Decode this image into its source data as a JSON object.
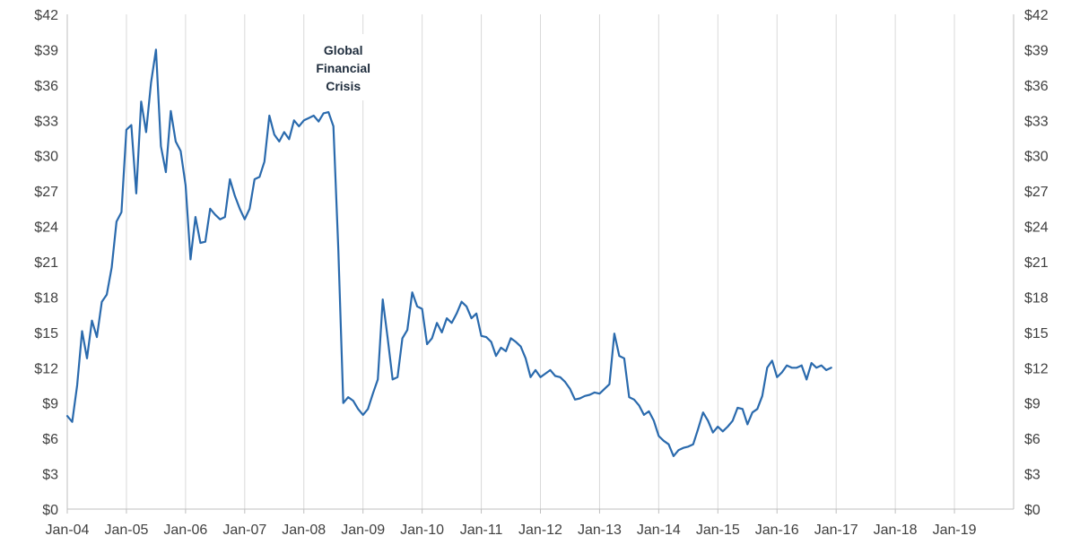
{
  "chart_data": {
    "type": "line",
    "title": "",
    "xlabel": "",
    "ylabel": "",
    "x_ticks": [
      "Jan-04",
      "Jan-05",
      "Jan-06",
      "Jan-07",
      "Jan-08",
      "Jan-09",
      "Jan-10",
      "Jan-11",
      "Jan-12",
      "Jan-13",
      "Jan-14",
      "Jan-15",
      "Jan-16",
      "Jan-17",
      "Jan-18",
      "Jan-19"
    ],
    "y_ticks": [
      "$0",
      "$3",
      "$6",
      "$9",
      "$12",
      "$15",
      "$18",
      "$21",
      "$24",
      "$27",
      "$30",
      "$33",
      "$36",
      "$39",
      "$42"
    ],
    "ylim": [
      0,
      42
    ],
    "xlim": [
      "2004-01",
      "2019-12"
    ],
    "grid": "vertical",
    "series_color": "#2a6aad",
    "annotation": {
      "text_lines": [
        "Global",
        "Financial",
        "Crisis"
      ],
      "at": "2008-09"
    },
    "series": [
      {
        "points": [
          [
            "2004-01",
            7.9
          ],
          [
            "2004-02",
            7.4
          ],
          [
            "2004-03",
            10.5
          ],
          [
            "2004-04",
            15.1
          ],
          [
            "2004-05",
            12.8
          ],
          [
            "2004-06",
            16.0
          ],
          [
            "2004-07",
            14.6
          ],
          [
            "2004-08",
            17.6
          ],
          [
            "2004-09",
            18.2
          ],
          [
            "2004-10",
            20.5
          ],
          [
            "2004-11",
            24.4
          ],
          [
            "2004-12",
            25.2
          ],
          [
            "2005-01",
            32.2
          ],
          [
            "2005-02",
            32.6
          ],
          [
            "2005-03",
            26.8
          ],
          [
            "2005-04",
            34.6
          ],
          [
            "2005-05",
            32.0
          ],
          [
            "2005-06",
            36.2
          ],
          [
            "2005-07",
            39.0
          ],
          [
            "2005-08",
            30.8
          ],
          [
            "2005-09",
            28.6
          ],
          [
            "2005-10",
            33.8
          ],
          [
            "2005-11",
            31.2
          ],
          [
            "2005-12",
            30.4
          ],
          [
            "2006-01",
            27.5
          ],
          [
            "2006-02",
            21.2
          ],
          [
            "2006-03",
            24.8
          ],
          [
            "2006-04",
            22.6
          ],
          [
            "2006-05",
            22.7
          ],
          [
            "2006-06",
            25.5
          ],
          [
            "2006-07",
            25.0
          ],
          [
            "2006-08",
            24.6
          ],
          [
            "2006-09",
            24.8
          ],
          [
            "2006-10",
            28.0
          ],
          [
            "2006-11",
            26.6
          ],
          [
            "2006-12",
            25.5
          ],
          [
            "2007-01",
            24.6
          ],
          [
            "2007-02",
            25.5
          ],
          [
            "2007-03",
            28.0
          ],
          [
            "2007-04",
            28.2
          ],
          [
            "2007-05",
            29.5
          ],
          [
            "2007-06",
            33.4
          ],
          [
            "2007-07",
            31.8
          ],
          [
            "2007-08",
            31.2
          ],
          [
            "2007-09",
            32.0
          ],
          [
            "2007-10",
            31.4
          ],
          [
            "2007-11",
            33.0
          ],
          [
            "2007-12",
            32.5
          ],
          [
            "2008-01",
            33.0
          ],
          [
            "2008-02",
            33.2
          ],
          [
            "2008-03",
            33.4
          ],
          [
            "2008-04",
            32.9
          ],
          [
            "2008-05",
            33.6
          ],
          [
            "2008-06",
            33.7
          ],
          [
            "2008-07",
            32.5
          ],
          [
            "2008-08",
            22.0
          ],
          [
            "2008-09",
            9.0
          ],
          [
            "2008-10",
            9.5
          ],
          [
            "2008-11",
            9.2
          ],
          [
            "2008-12",
            8.5
          ],
          [
            "2009-01",
            8.0
          ],
          [
            "2009-02",
            8.5
          ],
          [
            "2009-03",
            9.8
          ],
          [
            "2009-04",
            11.0
          ],
          [
            "2009-05",
            17.8
          ],
          [
            "2009-06",
            14.5
          ],
          [
            "2009-07",
            11.0
          ],
          [
            "2009-08",
            11.2
          ],
          [
            "2009-09",
            14.5
          ],
          [
            "2009-10",
            15.2
          ],
          [
            "2009-11",
            18.4
          ],
          [
            "2009-12",
            17.2
          ],
          [
            "2010-01",
            17.0
          ],
          [
            "2010-02",
            14.0
          ],
          [
            "2010-03",
            14.5
          ],
          [
            "2010-04",
            15.8
          ],
          [
            "2010-05",
            15.0
          ],
          [
            "2010-06",
            16.2
          ],
          [
            "2010-07",
            15.8
          ],
          [
            "2010-08",
            16.6
          ],
          [
            "2010-09",
            17.6
          ],
          [
            "2010-10",
            17.2
          ],
          [
            "2010-11",
            16.2
          ],
          [
            "2010-12",
            16.6
          ],
          [
            "2011-01",
            14.7
          ],
          [
            "2011-02",
            14.6
          ],
          [
            "2011-03",
            14.2
          ],
          [
            "2011-04",
            13.0
          ],
          [
            "2011-05",
            13.7
          ],
          [
            "2011-06",
            13.4
          ],
          [
            "2011-07",
            14.5
          ],
          [
            "2011-08",
            14.2
          ],
          [
            "2011-09",
            13.8
          ],
          [
            "2011-10",
            12.8
          ],
          [
            "2011-11",
            11.2
          ],
          [
            "2011-12",
            11.8
          ],
          [
            "2012-01",
            11.2
          ],
          [
            "2012-02",
            11.5
          ],
          [
            "2012-03",
            11.8
          ],
          [
            "2012-04",
            11.3
          ],
          [
            "2012-05",
            11.2
          ],
          [
            "2012-06",
            10.8
          ],
          [
            "2012-07",
            10.2
          ],
          [
            "2012-08",
            9.3
          ],
          [
            "2012-09",
            9.4
          ],
          [
            "2012-10",
            9.6
          ],
          [
            "2012-11",
            9.7
          ],
          [
            "2012-12",
            9.9
          ],
          [
            "2013-01",
            9.8
          ],
          [
            "2013-02",
            10.2
          ],
          [
            "2013-03",
            10.6
          ],
          [
            "2013-04",
            14.9
          ],
          [
            "2013-05",
            13.0
          ],
          [
            "2013-06",
            12.8
          ],
          [
            "2013-07",
            9.5
          ],
          [
            "2013-08",
            9.3
          ],
          [
            "2013-09",
            8.8
          ],
          [
            "2013-10",
            8.0
          ],
          [
            "2013-11",
            8.3
          ],
          [
            "2013-12",
            7.5
          ],
          [
            "2014-01",
            6.2
          ],
          [
            "2014-02",
            5.8
          ],
          [
            "2014-03",
            5.5
          ],
          [
            "2014-04",
            4.5
          ],
          [
            "2014-05",
            5.0
          ],
          [
            "2014-06",
            5.2
          ],
          [
            "2014-07",
            5.3
          ],
          [
            "2014-08",
            5.5
          ],
          [
            "2014-09",
            6.8
          ],
          [
            "2014-10",
            8.2
          ],
          [
            "2014-11",
            7.5
          ],
          [
            "2014-12",
            6.5
          ],
          [
            "2015-01",
            7.0
          ],
          [
            "2015-02",
            6.6
          ],
          [
            "2015-03",
            7.0
          ],
          [
            "2015-04",
            7.5
          ],
          [
            "2015-05",
            8.6
          ],
          [
            "2015-06",
            8.5
          ],
          [
            "2015-07",
            7.2
          ],
          [
            "2015-08",
            8.2
          ],
          [
            "2015-09",
            8.5
          ],
          [
            "2015-10",
            9.6
          ],
          [
            "2015-11",
            12.0
          ],
          [
            "2015-12",
            12.6
          ],
          [
            "2016-01",
            11.2
          ],
          [
            "2016-02",
            11.6
          ],
          [
            "2016-03",
            12.2
          ],
          [
            "2016-04",
            12.0
          ],
          [
            "2016-05",
            12.0
          ],
          [
            "2016-06",
            12.2
          ],
          [
            "2016-07",
            11.0
          ],
          [
            "2016-08",
            12.4
          ],
          [
            "2016-09",
            12.0
          ],
          [
            "2016-10",
            12.2
          ],
          [
            "2016-11",
            11.8
          ],
          [
            "2016-12",
            12.0
          ]
        ]
      }
    ]
  }
}
